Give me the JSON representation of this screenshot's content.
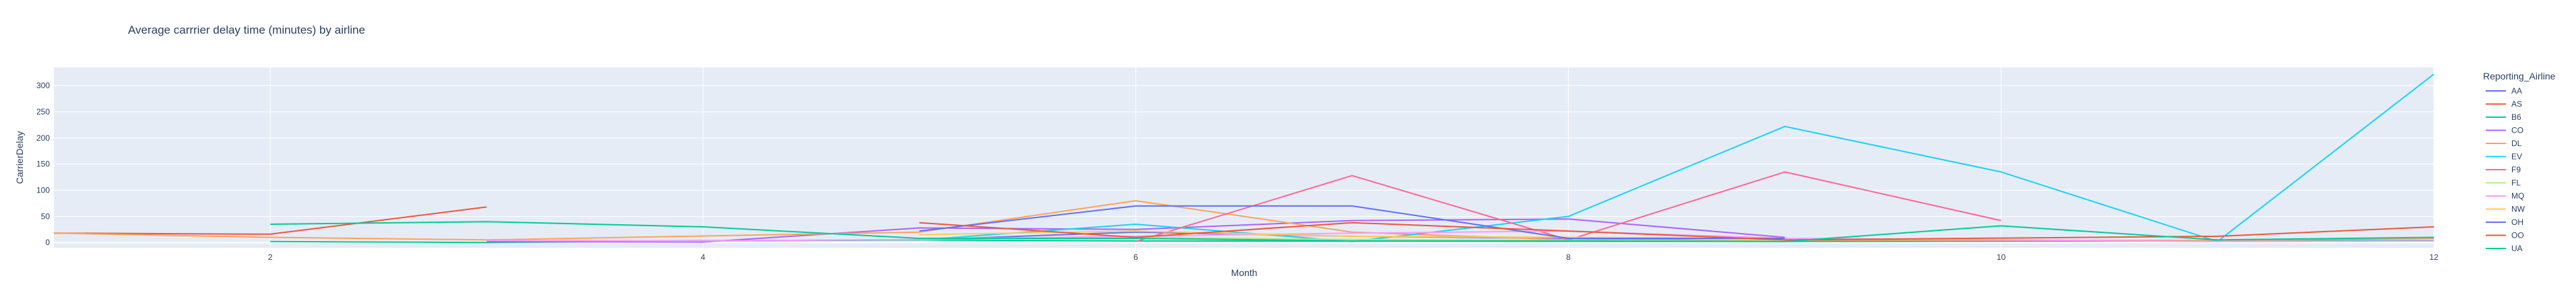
{
  "chart_data": {
    "type": "line",
    "title": "Average carrrier delay time (minutes) by airline",
    "xlabel": "Month",
    "ylabel": "CarrierDelay",
    "xlim": [
      1,
      12
    ],
    "ylim": [
      -10,
      335
    ],
    "x_ticks": [
      2,
      4,
      6,
      8,
      10,
      12
    ],
    "y_ticks": [
      0,
      50,
      100,
      150,
      200,
      250,
      300
    ],
    "grid": true,
    "legend_title": "Reporting_Airline",
    "legend_position": "right",
    "series": [
      {
        "name": "AA",
        "color": "#636efa",
        "x": [
          3,
          5,
          6,
          7,
          8,
          9
        ],
        "y": [
          2,
          5,
          20,
          12,
          8,
          3
        ]
      },
      {
        "name": "AS",
        "color": "#EF553B",
        "x": [
          1,
          2,
          3
        ],
        "y": [
          18,
          16,
          68
        ]
      },
      {
        "name": "B6",
        "color": "#00cc96",
        "x": [
          2,
          3,
          4,
          5,
          6,
          9,
          12
        ],
        "y": [
          2,
          0,
          3,
          5,
          3,
          2,
          4
        ]
      },
      {
        "name": "CO",
        "color": "#ab63fa",
        "x": [
          3,
          4,
          5,
          6,
          7,
          8,
          9
        ],
        "y": [
          2,
          1,
          28,
          25,
          42,
          45,
          10
        ]
      },
      {
        "name": "DL",
        "color": "#FFA15A",
        "x": [
          1,
          2,
          3,
          5,
          6,
          7,
          8,
          11,
          12
        ],
        "y": [
          18,
          10,
          5,
          20,
          80,
          20,
          5,
          4,
          8
        ]
      },
      {
        "name": "EV",
        "color": "#19d3f3",
        "x": [
          5,
          6,
          7,
          8,
          9,
          10,
          11,
          12
        ],
        "y": [
          5,
          35,
          2,
          50,
          222,
          135,
          2,
          322
        ]
      },
      {
        "name": "F9",
        "color": "#FF6692",
        "x": [
          6,
          7,
          8,
          9,
          10
        ],
        "y": [
          2,
          128,
          5,
          135,
          42
        ]
      },
      {
        "name": "FL",
        "color": "#B6E880",
        "x": [
          5,
          6,
          7,
          8,
          9
        ],
        "y": [
          8,
          10,
          6,
          4,
          3
        ]
      },
      {
        "name": "MQ",
        "color": "#FF97FF",
        "x": [
          3,
          4,
          5,
          6,
          7,
          8,
          9,
          10,
          11,
          12
        ],
        "y": [
          4,
          3,
          6,
          12,
          18,
          22,
          8,
          5,
          2,
          3
        ]
      },
      {
        "name": "NW",
        "color": "#FECB52",
        "x": [
          5,
          6,
          7,
          8,
          9
        ],
        "y": [
          15,
          22,
          12,
          10,
          8
        ]
      },
      {
        "name": "OH",
        "color": "#636efa",
        "x": [
          5,
          6,
          7,
          8,
          9
        ],
        "y": [
          22,
          70,
          70,
          8,
          8
        ]
      },
      {
        "name": "OO",
        "color": "#EF553B",
        "x": [
          5,
          6,
          7,
          8,
          9,
          11,
          12
        ],
        "y": [
          38,
          10,
          38,
          22,
          5,
          12,
          30
        ]
      },
      {
        "name": "UA",
        "color": "#00cc96",
        "x": [
          2,
          3,
          4,
          5,
          6,
          7,
          8,
          9,
          10,
          11,
          12
        ],
        "y": [
          35,
          40,
          30,
          8,
          8,
          3,
          3,
          2,
          32,
          5,
          10
        ]
      }
    ]
  }
}
